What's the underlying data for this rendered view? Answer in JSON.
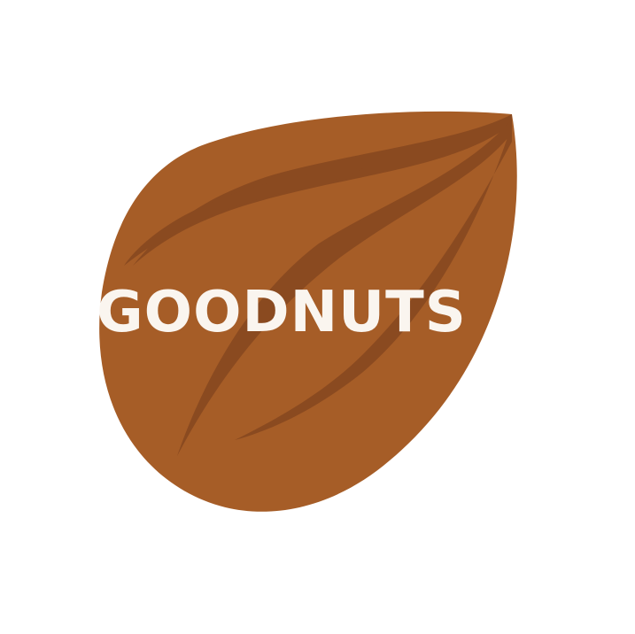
{
  "logo": {
    "name": "almond-logo",
    "text": "GOODNUTS",
    "colors": {
      "background": "#ffffff",
      "nut_fill": "#A65D27",
      "nut_vein": "#8A4A20",
      "text": "#FAF5EF"
    }
  }
}
